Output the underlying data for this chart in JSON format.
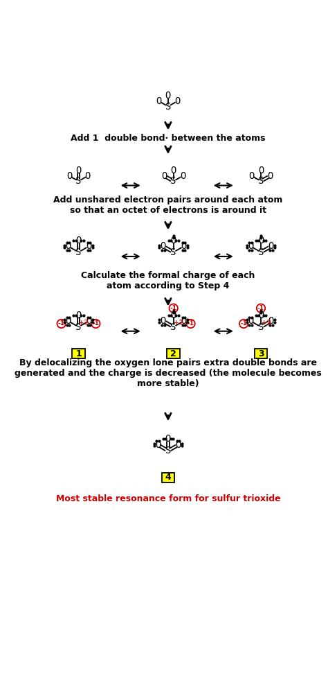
{
  "bg_color": "#ffffff",
  "text_color": "#000000",
  "red_color": "#cc0000",
  "yellow_box_color": "#ffff00",
  "figsize": [
    4.74,
    9.91
  ],
  "dpi": 100,
  "step1_text": "Add 1  double bond· between the atoms",
  "step2_text": "Add unshared electron pairs around each atom\nso that an octet of electrons is around it",
  "step3_text": "Calculate the formal charge of each\natom according to Step 4",
  "step4_text": "By delocalizing the oxygen lone pairs extra double bonds are\ngenerated and the charge is decreased (the molecule becomes\nmore stable)",
  "final_text": "Most stable resonance form for sulfur trioxide"
}
